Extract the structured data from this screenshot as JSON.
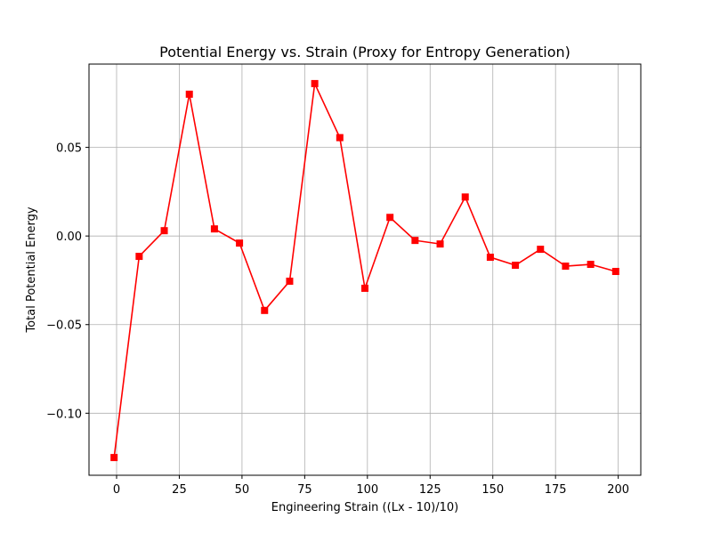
{
  "chart_data": {
    "type": "line",
    "title": "Potential Energy vs. Strain (Proxy for Entropy Generation)",
    "xlabel": "Engineering Strain ((Lx - 10)/10)",
    "ylabel": "Total Potential Energy",
    "xlim": [
      -11,
      209
    ],
    "ylim": [
      -0.135,
      0.097
    ],
    "xticks": [
      0,
      25,
      50,
      75,
      100,
      125,
      150,
      175,
      200
    ],
    "xtick_labels": [
      "0",
      "25",
      "50",
      "75",
      "100",
      "125",
      "150",
      "175",
      "200"
    ],
    "yticks": [
      -0.1,
      -0.05,
      0.0,
      0.05
    ],
    "ytick_labels": [
      "−0.10",
      "−0.05",
      "0.00",
      "0.05"
    ],
    "grid": true,
    "marker": "square",
    "series": [
      {
        "color": "#ff0000",
        "x": [
          -1,
          9,
          19,
          29,
          39,
          49,
          59,
          69,
          79,
          89,
          99,
          109,
          119,
          129,
          139,
          149,
          159,
          169,
          179,
          189,
          199
        ],
        "y": [
          -0.125,
          -0.0115,
          0.003,
          0.08,
          0.004,
          -0.004,
          -0.042,
          -0.0255,
          0.086,
          0.0555,
          -0.0295,
          0.0105,
          -0.0025,
          -0.0045,
          0.022,
          -0.012,
          -0.0165,
          -0.0075,
          -0.017,
          -0.016,
          -0.02
        ]
      }
    ]
  }
}
